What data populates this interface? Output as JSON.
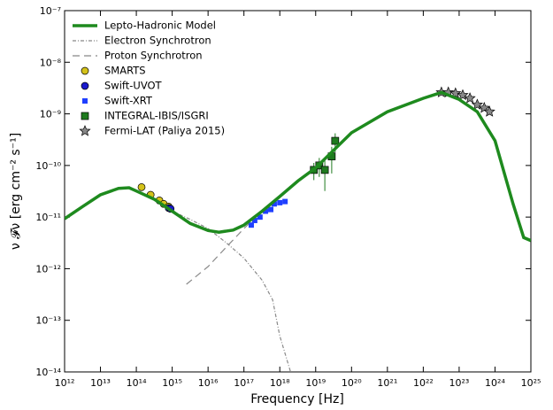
{
  "chart_data": {
    "type": "line",
    "x_label": "Frequency [Hz]",
    "y_label": "ν 𝓕ν [erg cm⁻² s⁻¹]",
    "xlog": true,
    "ylog": true,
    "xlim": [
      1000000000000.0,
      1e+25
    ],
    "ylim": [
      1e-14,
      1e-07
    ],
    "xticks": [
      {
        "value": 1000000000000.0,
        "label": "10¹²"
      },
      {
        "value": 10000000000000.0,
        "label": "10¹³"
      },
      {
        "value": 100000000000000.0,
        "label": "10¹⁴"
      },
      {
        "value": 1000000000000000.0,
        "label": "10¹⁵"
      },
      {
        "value": 1e+16,
        "label": "10¹⁶"
      },
      {
        "value": 1e+17,
        "label": "10¹⁷"
      },
      {
        "value": 1e+18,
        "label": "10¹⁸"
      },
      {
        "value": 1e+19,
        "label": "10¹⁹"
      },
      {
        "value": 1e+20,
        "label": "10²⁰"
      },
      {
        "value": 1e+21,
        "label": "10²¹"
      },
      {
        "value": 1e+22,
        "label": "10²²"
      },
      {
        "value": 1e+23,
        "label": "10²³"
      },
      {
        "value": 1e+24,
        "label": "10²⁴"
      },
      {
        "value": 1e+25,
        "label": "10²⁵"
      }
    ],
    "yticks": [
      {
        "value": 1e-14,
        "label": "10⁻¹⁴"
      },
      {
        "value": 1e-13,
        "label": "10⁻¹³"
      },
      {
        "value": 1e-12,
        "label": "10⁻¹²"
      },
      {
        "value": 1e-11,
        "label": "10⁻¹¹"
      },
      {
        "value": 1e-10,
        "label": "10⁻¹⁰"
      },
      {
        "value": 1e-09,
        "label": "10⁻⁹"
      },
      {
        "value": 1e-08,
        "label": "10⁻⁸"
      },
      {
        "value": 1e-07,
        "label": "10⁻⁷"
      }
    ],
    "legend": "upper left",
    "series": [
      {
        "name": "Lepto-Hadronic Model",
        "style": "line",
        "color": "#1e8a1e",
        "x": [
          1000000000000.0,
          3200000000000.0,
          10000000000000.0,
          32000000000000.0,
          63000000000000.0,
          100000000000000.0,
          320000000000000.0,
          1000000000000000.0,
          3200000000000000.0,
          1e+16,
          2e+16,
          5e+16,
          1e+17,
          3.2e+17,
          1e+18,
          3.2e+18,
          1e+19,
          1e+20,
          1e+21,
          1e+22,
          3.2e+22,
          1e+23,
          3.2e+23,
          1e+24,
          3.2e+24,
          6.3e+24,
          1e+25
        ],
        "values": [
          9.3e-12,
          1.6e-11,
          2.7e-11,
          3.6e-11,
          3.7e-11,
          3.2e-11,
          2.2e-11,
          1.3e-11,
          7.5e-12,
          5.5e-12,
          5.1e-12,
          5.6e-12,
          7e-12,
          1.3e-11,
          2.5e-11,
          5e-11,
          9e-11,
          4.3e-10,
          1.1e-09,
          2e-09,
          2.6e-09,
          1.9e-09,
          1.1e-09,
          3e-10,
          1.8e-11,
          4e-12,
          3.5e-12
        ]
      },
      {
        "name": "Electron Synchrotron",
        "style": "dash-dot",
        "color": "#888888",
        "x": [
          1000000000000000.0,
          3200000000000000.0,
          1e+16,
          3.2e+16,
          1e+17,
          3.2e+17,
          6.3e+17,
          1e+18,
          2e+18
        ],
        "values": [
          1.3e-11,
          9e-12,
          6e-12,
          3.2e-12,
          1.6e-12,
          6e-13,
          2.5e-13,
          5e-14,
          1e-14
        ]
      },
      {
        "name": "Proton Synchrotron",
        "style": "dashed",
        "color": "#888888",
        "x": [
          2500000000000000.0,
          1e+16,
          3.2e+16,
          1e+17,
          3.2e+17,
          1e+18
        ],
        "values": [
          5e-13,
          1.1e-12,
          2.6e-12,
          6e-12,
          1.3e-11,
          2.5e-11
        ]
      },
      {
        "name": "SMARTS",
        "style": "marker",
        "marker": "circle",
        "color": "#d4c21a",
        "x": [
          140000000000000.0,
          250000000000000.0,
          440000000000000.0,
          580000000000000.0,
          790000000000000.0
        ],
        "values": [
          3.8e-11,
          2.7e-11,
          2.1e-11,
          1.8e-11,
          1.6e-11
        ]
      },
      {
        "name": "Swift-UVOT",
        "style": "marker",
        "marker": "circle",
        "color": "#1a1acc",
        "x": [
          800000000000000.0,
          900000000000000.0
        ],
        "values": [
          1.5e-11,
          1.45e-11
        ]
      },
      {
        "name": "Swift-XRT",
        "style": "marker",
        "marker": "smallsquare",
        "color": "#1f3fff",
        "x": [
          1.6e+17,
          2e+17,
          2.8e+17,
          4e+17,
          5.6e+17,
          7e+17,
          1e+18,
          1.4e+18
        ],
        "values": [
          7e-12,
          8.6e-12,
          1e-11,
          1.3e-11,
          1.4e-11,
          1.8e-11,
          1.9e-11,
          2e-11
        ]
      },
      {
        "name": "INTEGRAL-IBIS/ISGRI",
        "style": "marker",
        "marker": "square",
        "color": "#1e7a1e",
        "x": [
          8.9e+18,
          1.26e+19,
          1.8e+19,
          2.8e+19,
          3.5e+19
        ],
        "values": [
          8.2e-11,
          1e-10,
          8.2e-11,
          1.5e-10,
          3e-10
        ],
        "errors": [
          3e-11,
          4e-11,
          5e-11,
          8e-11,
          1.2e-10
        ]
      },
      {
        "name": "Fermi-LAT (Paliya 2015)",
        "style": "marker",
        "marker": "star",
        "color": "#888888",
        "x": [
          3.2e+22,
          5e+22,
          7.9e+22,
          1.26e+23,
          2e+23,
          3.2e+23,
          5e+23,
          7e+23
        ],
        "values": [
          2.6e-09,
          2.6e-09,
          2.5e-09,
          2.3e-09,
          2e-09,
          1.5e-09,
          1.3e-09,
          1.1e-09
        ]
      }
    ]
  }
}
